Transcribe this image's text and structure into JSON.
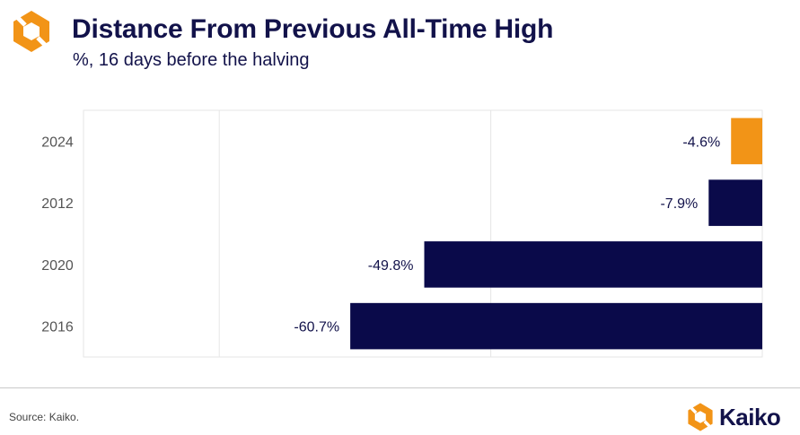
{
  "header": {
    "title": "Distance From Previous All-Time High",
    "subtitle": "%, 16 days before the halving"
  },
  "footer": {
    "source": "Source: Kaiko.",
    "brand": "Kaiko"
  },
  "colors": {
    "navy": "#0a0a4a",
    "orange": "#f29417",
    "grid": "#e6e6e6",
    "text": "#12124a"
  },
  "icons": [
    "kaiko-logo-icon"
  ],
  "chart_data": {
    "type": "bar",
    "orientation": "horizontal",
    "categories": [
      "2024",
      "2012",
      "2020",
      "2016"
    ],
    "values": [
      -4.6,
      -7.9,
      -49.8,
      -60.7
    ],
    "data_labels": [
      "-4.6%",
      "-7.9%",
      "-49.8%",
      "-60.7%"
    ],
    "highlight_category": "2024",
    "xlim": [
      -100,
      0
    ],
    "grid": true,
    "legend": "none"
  }
}
